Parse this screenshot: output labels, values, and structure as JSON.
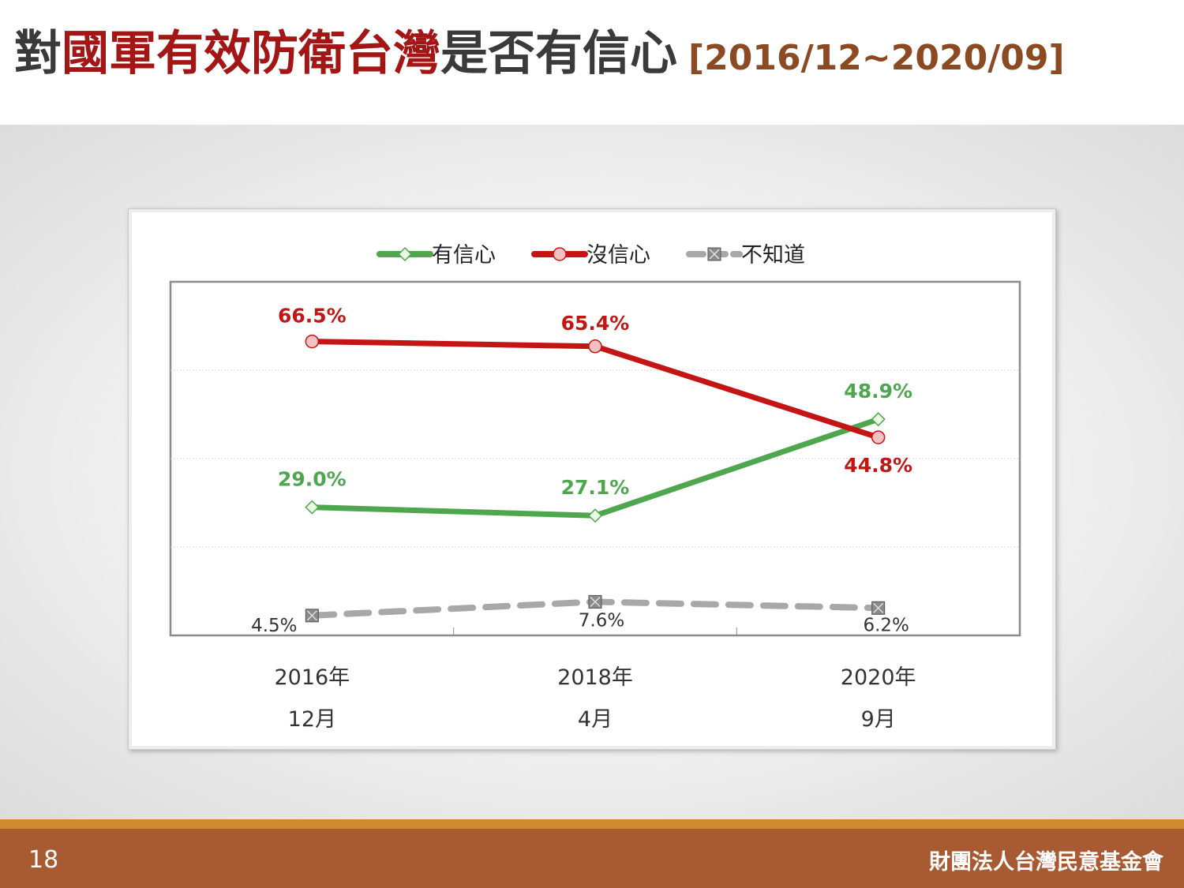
{
  "slide": {
    "title_prefix": "對",
    "title_highlight": "國軍有效防衛台灣",
    "title_suffix": "是否有信心",
    "title_range": "[2016/12~2020/09]",
    "page_number": "18",
    "organization": "財團法人台灣民意基金會"
  },
  "colors": {
    "confident": "#4ea64e",
    "not_confident": "#c41515",
    "dont_know": "#a8a8a8",
    "title_highlight": "#a31616",
    "footer": "#a85a33"
  },
  "chart_data": {
    "type": "line",
    "title": "",
    "xlabel": "",
    "ylabel": "",
    "ylim": [
      0,
      80
    ],
    "grid": true,
    "legend_position": "top-center",
    "categories": [
      [
        "2016年",
        "12月"
      ],
      [
        "2018年",
        "4月"
      ],
      [
        "2020年",
        "9月"
      ]
    ],
    "series": [
      {
        "name": "有信心",
        "values": [
          29.0,
          27.1,
          48.9
        ],
        "labels": [
          "29.0%",
          "27.1%",
          "48.9%"
        ],
        "color": "#4ea64e",
        "marker": "diamond",
        "dashed": false
      },
      {
        "name": "沒信心",
        "values": [
          66.5,
          65.4,
          44.8
        ],
        "labels": [
          "66.5%",
          "65.4%",
          "44.8%"
        ],
        "color": "#c41515",
        "marker": "circle",
        "dashed": false
      },
      {
        "name": "不知道",
        "values": [
          4.5,
          7.6,
          6.2
        ],
        "labels": [
          "4.5%",
          "7.6%",
          "6.2%"
        ],
        "color": "#a8a8a8",
        "marker": "square-x",
        "dashed": true
      }
    ]
  }
}
